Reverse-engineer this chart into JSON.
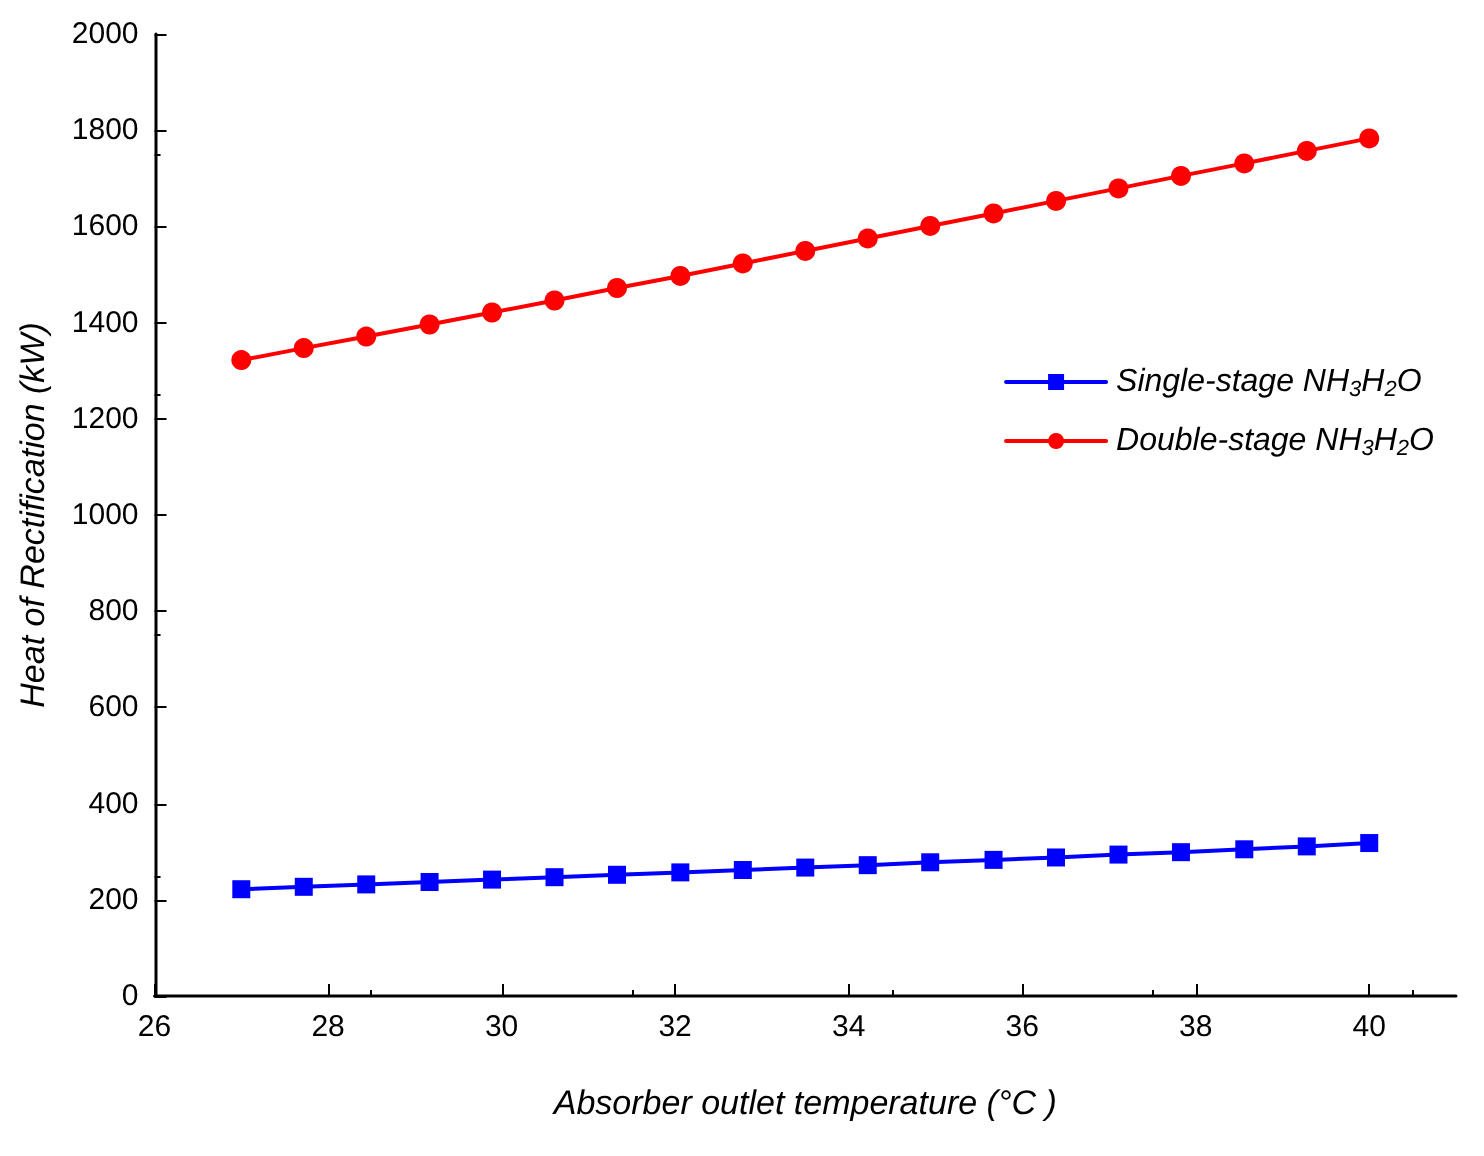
{
  "chart_data": {
    "type": "line",
    "xlabel": "Absorber outlet temperature (°C )",
    "ylabel": "Heat of Rectification (kW)",
    "x": [
      27,
      27.72,
      28.44,
      29.17,
      29.89,
      30.61,
      31.33,
      32.06,
      32.78,
      33.5,
      34.22,
      34.94,
      35.67,
      36.39,
      37.11,
      37.83,
      38.56,
      39.28,
      40
    ],
    "series": [
      {
        "name": "Single-stage NH$_{3}$H$_{2}$O",
        "color": "#0000ff",
        "marker": "square",
        "values": [
          222,
          227,
          232,
          237,
          242,
          247,
          252,
          257,
          262,
          267,
          272,
          278,
          283,
          288,
          294,
          299,
          305,
          311,
          318
        ]
      },
      {
        "name": "Double-stage NH$_{3}$H$_{2}$O",
        "color": "#ff0000",
        "marker": "circle",
        "values": [
          1322,
          1347,
          1371,
          1396,
          1421,
          1446,
          1472,
          1497,
          1523,
          1549,
          1575,
          1601,
          1627,
          1653,
          1679,
          1705,
          1731,
          1757,
          1783
        ]
      }
    ],
    "xlim": [
      26,
      41
    ],
    "xticks": [
      26,
      28,
      30,
      32,
      34,
      36,
      38,
      40
    ],
    "ylim": [
      0,
      2000
    ],
    "yticks": [
      0,
      200,
      400,
      600,
      800,
      1000,
      1200,
      1400,
      1600,
      1800,
      2000
    ],
    "grid": false,
    "legend": "top right",
    "line_style": "solid"
  }
}
